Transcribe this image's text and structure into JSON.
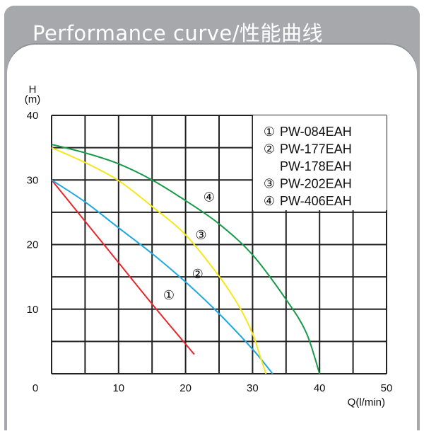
{
  "header": {
    "title": "Performance curve/性能曲线"
  },
  "chart_data": {
    "type": "line",
    "title": "",
    "xlabel": "Q(l/min)",
    "ylabel_top": "H",
    "ylabel_unit": "(m)",
    "xlim": [
      0,
      50
    ],
    "ylim": [
      0,
      40
    ],
    "xticks": [
      0,
      10,
      20,
      30,
      40,
      50
    ],
    "yticks": [
      0,
      10,
      20,
      30,
      40
    ],
    "grid": true,
    "grid_step": 5,
    "legend_position": "top-right",
    "legend": [
      {
        "marker": "①",
        "text": "PW-084EAH"
      },
      {
        "marker": "②",
        "text": "PW-177EAH"
      },
      {
        "marker": "",
        "text": "PW-178EAH"
      },
      {
        "marker": "③",
        "text": "PW-202EAH"
      },
      {
        "marker": "④",
        "text": "PW-406EAH"
      }
    ],
    "series": [
      {
        "label": "①",
        "color": "#e8262b",
        "label_at": [
          17.5,
          11.5
        ],
        "points": [
          [
            0,
            30
          ],
          [
            5,
            23.6
          ],
          [
            10,
            17.2
          ],
          [
            15,
            10.8
          ],
          [
            20,
            4.6
          ],
          [
            21.3,
            3.0
          ]
        ]
      },
      {
        "label": "②",
        "color": "#1ea7e1",
        "label_at": [
          21.8,
          14.8
        ],
        "points": [
          [
            0,
            30
          ],
          [
            5,
            26.6
          ],
          [
            10,
            22.6
          ],
          [
            15,
            18.6
          ],
          [
            20,
            14.2
          ],
          [
            25,
            9.3
          ],
          [
            30,
            3.8
          ],
          [
            33,
            0
          ]
        ]
      },
      {
        "label": "③",
        "color": "#f5e71a",
        "label_at": [
          22.3,
          20.8
        ],
        "points": [
          [
            0,
            35
          ],
          [
            5,
            32.7
          ],
          [
            10,
            29.9
          ],
          [
            15,
            25.9
          ],
          [
            20,
            21.5
          ],
          [
            25,
            15.1
          ],
          [
            28,
            10.4
          ],
          [
            30,
            6.2
          ],
          [
            31,
            3.1
          ],
          [
            32,
            0
          ]
        ]
      },
      {
        "label": "④",
        "color": "#179a48",
        "label_at": [
          23.5,
          26.7
        ],
        "points": [
          [
            0,
            35.5
          ],
          [
            5,
            34.2
          ],
          [
            10,
            32.5
          ],
          [
            15,
            30.0
          ],
          [
            20,
            26.8
          ],
          [
            25,
            23.2
          ],
          [
            30,
            18.4
          ],
          [
            35,
            11.5
          ],
          [
            38,
            6.4
          ],
          [
            40,
            0
          ]
        ]
      }
    ]
  }
}
